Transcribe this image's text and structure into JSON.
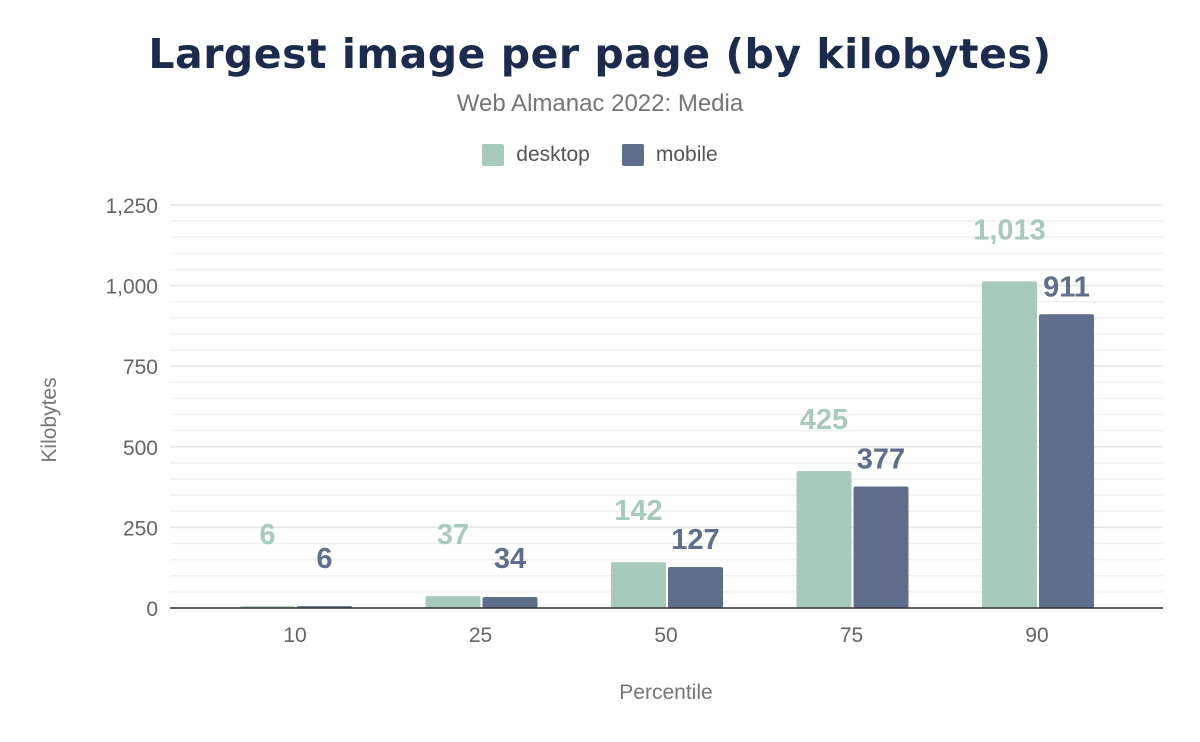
{
  "chart_data": {
    "type": "bar",
    "title": "Largest image per page (by kilobytes)",
    "subtitle": "Web Almanac 2022: Media",
    "xlabel": "Percentile",
    "ylabel": "Kilobytes",
    "categories": [
      "10",
      "25",
      "50",
      "75",
      "90"
    ],
    "series": [
      {
        "name": "desktop",
        "color": "#a8cabb",
        "values": [
          6,
          37,
          142,
          425,
          1013
        ],
        "labels": [
          "6",
          "37",
          "142",
          "425",
          "1,013"
        ]
      },
      {
        "name": "mobile",
        "color": "#5f6e8a",
        "values": [
          6,
          34,
          127,
          377,
          911
        ],
        "labels": [
          "6",
          "34",
          "127",
          "377",
          "911"
        ]
      }
    ],
    "ylim": [
      0,
      1250
    ],
    "yticks": [
      0,
      250,
      500,
      750,
      1000,
      1250
    ],
    "ytick_labels": [
      "0",
      "250",
      "500",
      "750",
      "1,000",
      "1,250"
    ],
    "grid": true,
    "legend": "top-center"
  }
}
